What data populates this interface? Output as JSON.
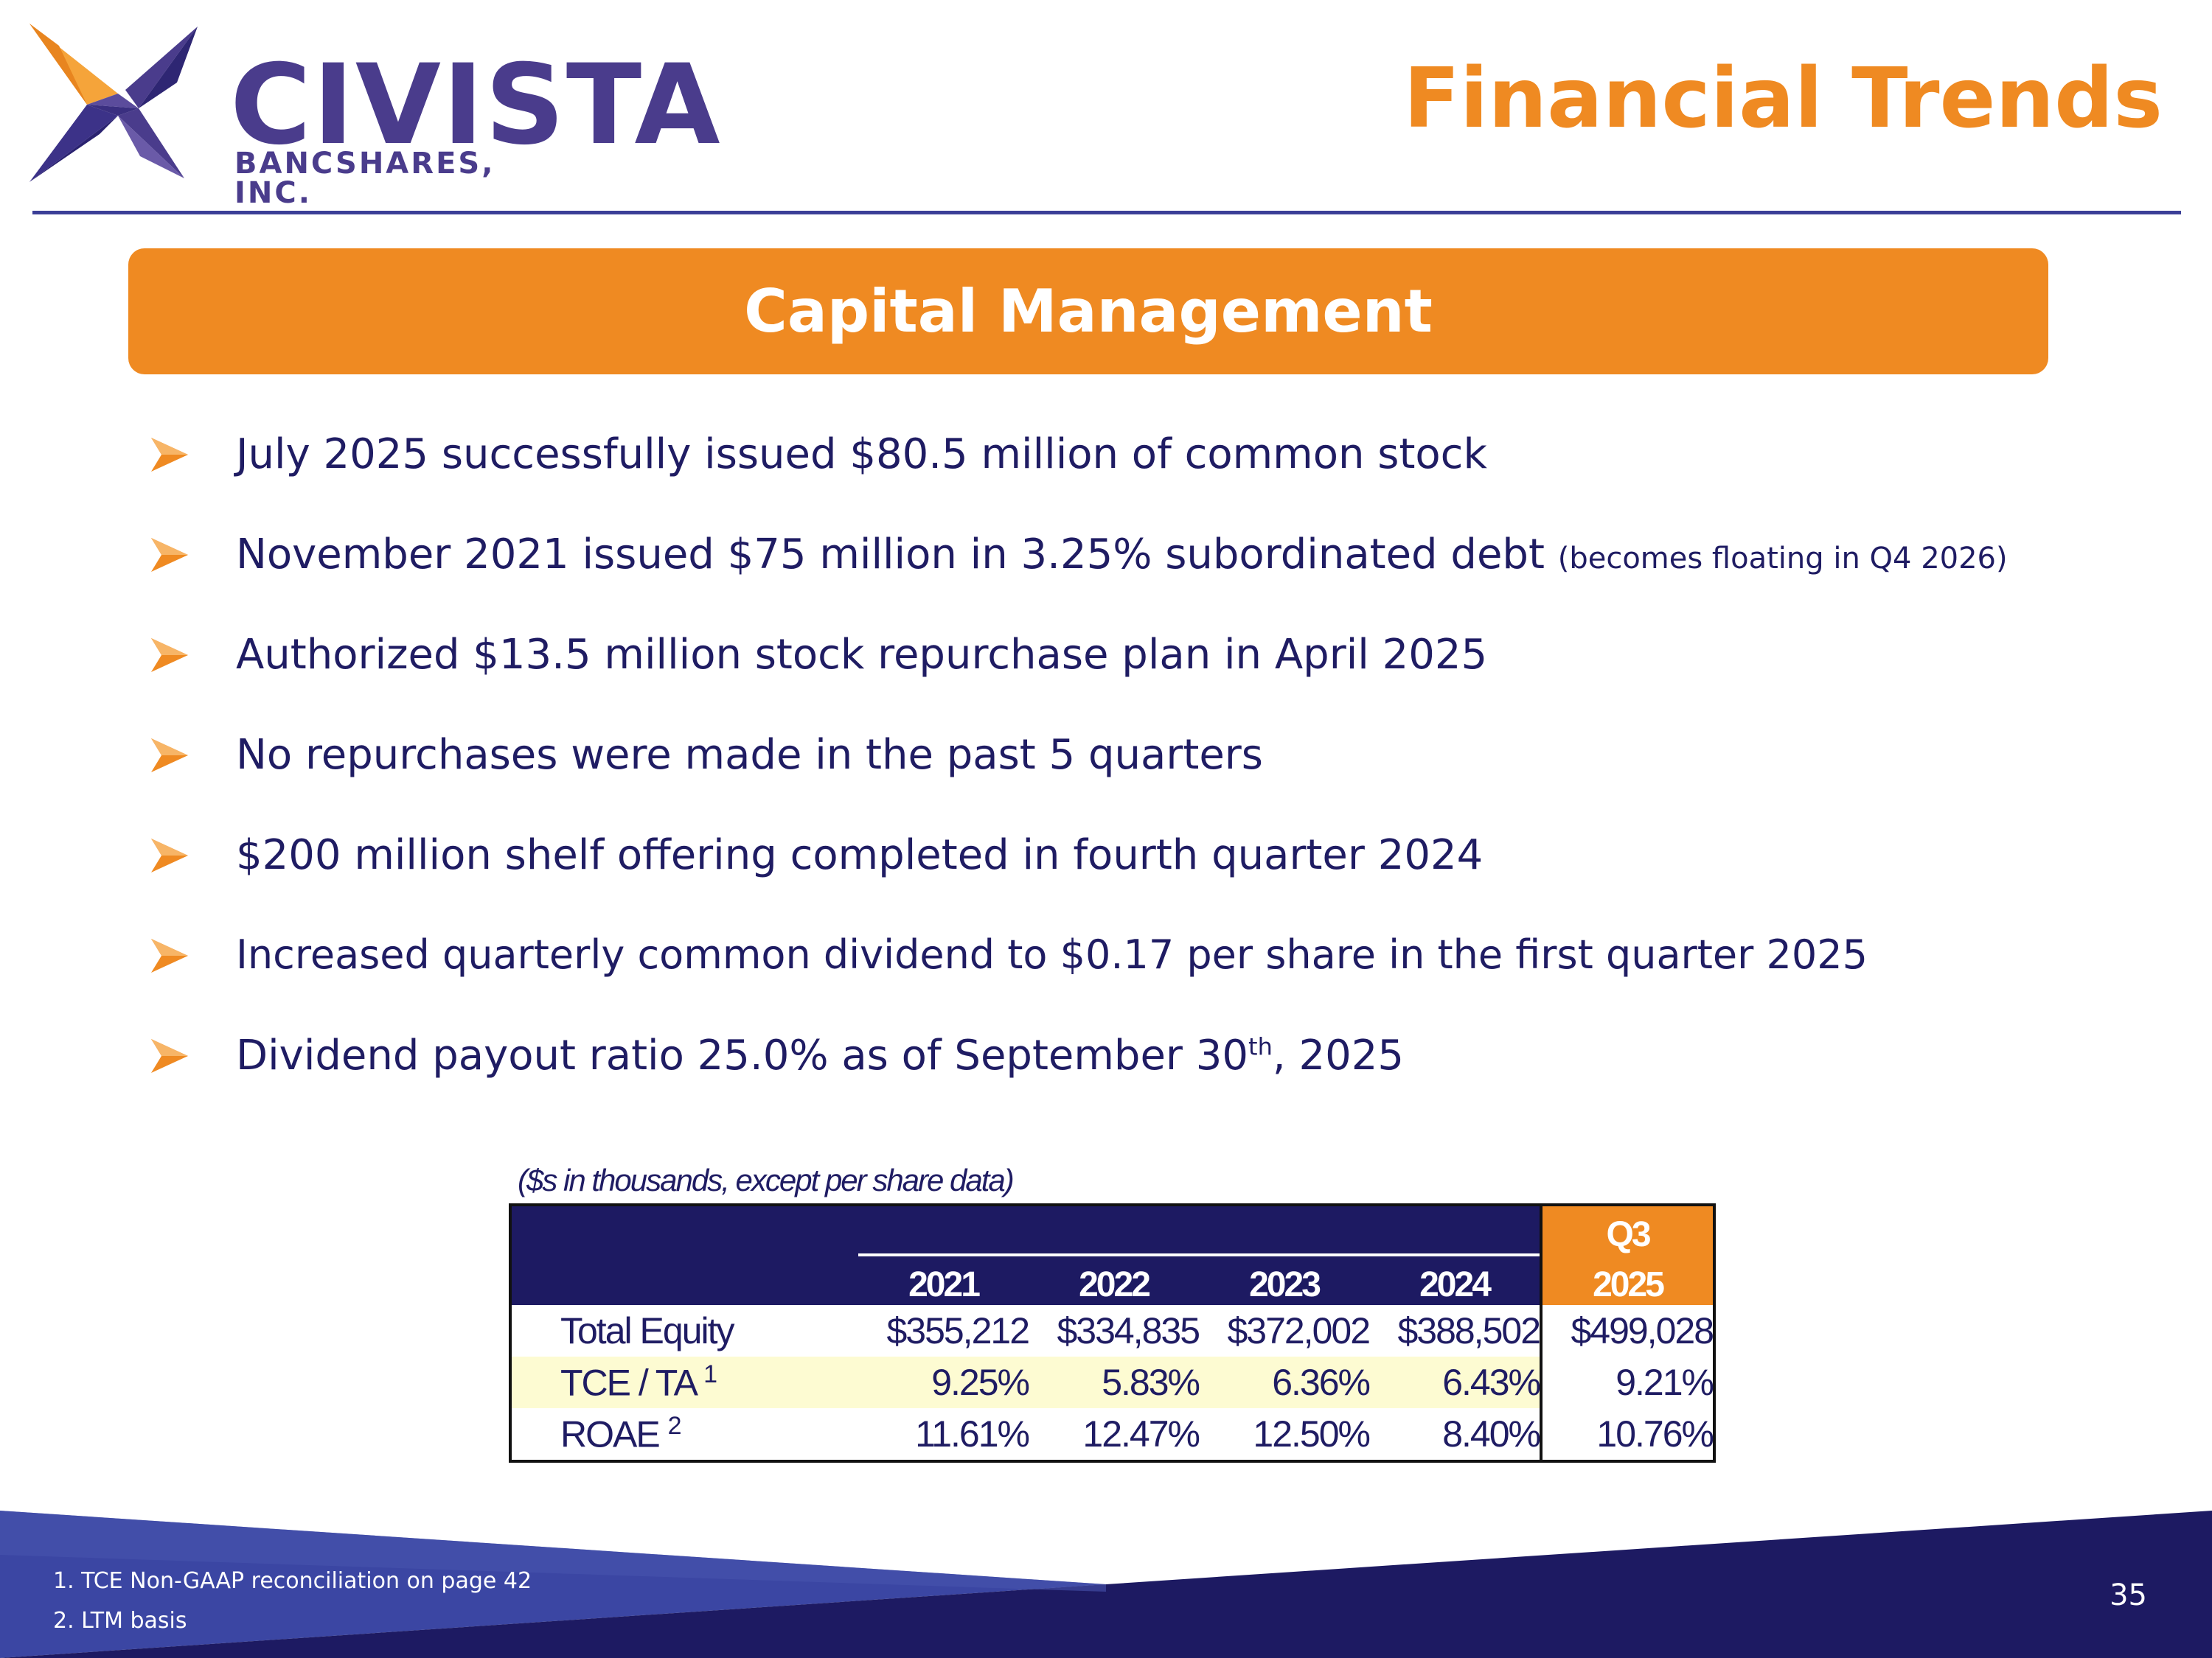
{
  "logo": {
    "name": "CIVISTA",
    "subtitle": "BANCSHARES, INC."
  },
  "header": {
    "title": "Financial Trends"
  },
  "banner": {
    "title": "Capital Management"
  },
  "bullets": {
    "b1": "July 2025 successfully issued $80.5 million of common stock",
    "b2_main": "November 2021 issued $75 million in 3.25% subordinated debt",
    "b2_note": "(becomes floating in Q4 2026)",
    "b3": "Authorized $13.5 million stock repurchase plan in April 2025",
    "b4": "No repurchases were made in the past 5 quarters",
    "b5": "$200 million shelf offering completed in fourth quarter 2024",
    "b6": "Increased quarterly common dividend to $0.17 per share in the first quarter 2025",
    "b7_pre": "Dividend payout ratio 25.0% as of September 30",
    "b7_sup": "th",
    "b7_post": ", 2025"
  },
  "table": {
    "note": "($s in thousands, except per share data)",
    "years": [
      "2021",
      "2022",
      "2023",
      "2024"
    ],
    "q3_top": "Q3",
    "q3_bottom": "2025",
    "rows": [
      {
        "label": "Total Equity",
        "sup": "",
        "values": [
          "$355,212",
          "$334,835",
          "$372,002",
          "$388,502"
        ],
        "q3": "$499,028"
      },
      {
        "label": "TCE / TA",
        "sup": "1",
        "values": [
          "9.25%",
          "5.83%",
          "6.36%",
          "6.43%"
        ],
        "q3": "9.21%"
      },
      {
        "label": "ROAE",
        "sup": "2",
        "values": [
          "11.61%",
          "12.47%",
          "12.50%",
          "8.40%"
        ],
        "q3": "10.76%"
      }
    ]
  },
  "footer": {
    "note1": "1. TCE Non-GAAP reconciliation on page 42",
    "note2": "2. LTM basis",
    "page_number": "35"
  },
  "colors": {
    "accent_orange": "#ef8a22",
    "navy": "#1d1a62",
    "text_navy": "#1f1c63",
    "logo_purple": "#4a3c8c"
  }
}
